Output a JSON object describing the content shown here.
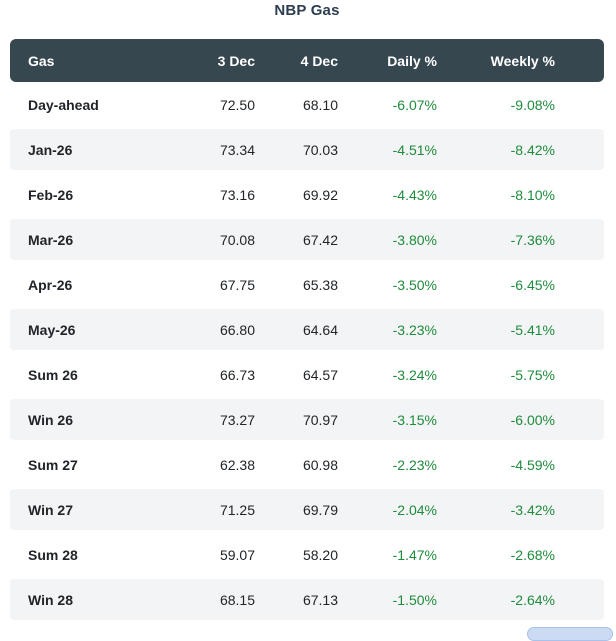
{
  "page": {
    "title": "NBP Gas"
  },
  "table": {
    "columns": [
      "Gas",
      "3 Dec",
      "4 Dec",
      "Daily %",
      "Weekly %"
    ],
    "rows": [
      [
        "Day-ahead",
        "72.50",
        "68.10",
        "-6.07%",
        "-9.08%"
      ],
      [
        "Jan-26",
        "73.34",
        "70.03",
        "-4.51%",
        "-8.42%"
      ],
      [
        "Feb-26",
        "73.16",
        "69.92",
        "-4.43%",
        "-8.10%"
      ],
      [
        "Mar-26",
        "70.08",
        "67.42",
        "-3.80%",
        "-7.36%"
      ],
      [
        "Apr-26",
        "67.75",
        "65.38",
        "-3.50%",
        "-6.45%"
      ],
      [
        "May-26",
        "66.80",
        "64.64",
        "-3.23%",
        "-5.41%"
      ],
      [
        "Sum 26",
        "66.73",
        "64.57",
        "-3.24%",
        "-5.75%"
      ],
      [
        "Win 26",
        "73.27",
        "70.97",
        "-3.15%",
        "-6.00%"
      ],
      [
        "Sum 27",
        "62.38",
        "60.98",
        "-2.23%",
        "-4.59%"
      ],
      [
        "Win 27",
        "71.25",
        "69.79",
        "-2.04%",
        "-3.42%"
      ],
      [
        "Sum 28",
        "59.07",
        "58.20",
        "-1.47%",
        "-2.68%"
      ],
      [
        "Win 28",
        "68.15",
        "67.13",
        "-1.50%",
        "-2.64%"
      ]
    ]
  },
  "chart_data": {
    "type": "table",
    "title": "NBP Gas",
    "columns": [
      "Gas",
      "3 Dec",
      "4 Dec",
      "Daily %",
      "Weekly %"
    ],
    "rows": [
      {
        "contract": "Day-ahead",
        "dec3": 72.5,
        "dec4": 68.1,
        "daily_pct": -6.07,
        "weekly_pct": -9.08
      },
      {
        "contract": "Jan-26",
        "dec3": 73.34,
        "dec4": 70.03,
        "daily_pct": -4.51,
        "weekly_pct": -8.42
      },
      {
        "contract": "Feb-26",
        "dec3": 73.16,
        "dec4": 69.92,
        "daily_pct": -4.43,
        "weekly_pct": -8.1
      },
      {
        "contract": "Mar-26",
        "dec3": 70.08,
        "dec4": 67.42,
        "daily_pct": -3.8,
        "weekly_pct": -7.36
      },
      {
        "contract": "Apr-26",
        "dec3": 67.75,
        "dec4": 65.38,
        "daily_pct": -3.5,
        "weekly_pct": -6.45
      },
      {
        "contract": "May-26",
        "dec3": 66.8,
        "dec4": 64.64,
        "daily_pct": -3.23,
        "weekly_pct": -5.41
      },
      {
        "contract": "Sum 26",
        "dec3": 66.73,
        "dec4": 64.57,
        "daily_pct": -3.24,
        "weekly_pct": -5.75
      },
      {
        "contract": "Win 26",
        "dec3": 73.27,
        "dec4": 70.97,
        "daily_pct": -3.15,
        "weekly_pct": -6.0
      },
      {
        "contract": "Sum 27",
        "dec3": 62.38,
        "dec4": 60.98,
        "daily_pct": -2.23,
        "weekly_pct": -4.59
      },
      {
        "contract": "Win 27",
        "dec3": 71.25,
        "dec4": 69.79,
        "daily_pct": -2.04,
        "weekly_pct": -3.42
      },
      {
        "contract": "Sum 28",
        "dec3": 59.07,
        "dec4": 58.2,
        "daily_pct": -1.47,
        "weekly_pct": -2.68
      },
      {
        "contract": "Win 28",
        "dec3": 68.15,
        "dec4": 67.13,
        "daily_pct": -1.5,
        "weekly_pct": -2.64
      }
    ],
    "notes": "Percent change cells rendered in green; alternating row stripes; dark slate header row"
  },
  "colors": {
    "header_bg": "#37474f",
    "header_text": "#ffffff",
    "title_color": "#2c3e50",
    "stripe_bg": "#f3f4f5",
    "value_text": "#212529",
    "pct_green": "#1f8b3c",
    "button_fill": "#ccdbf4",
    "button_border": "#a9c2ec"
  }
}
